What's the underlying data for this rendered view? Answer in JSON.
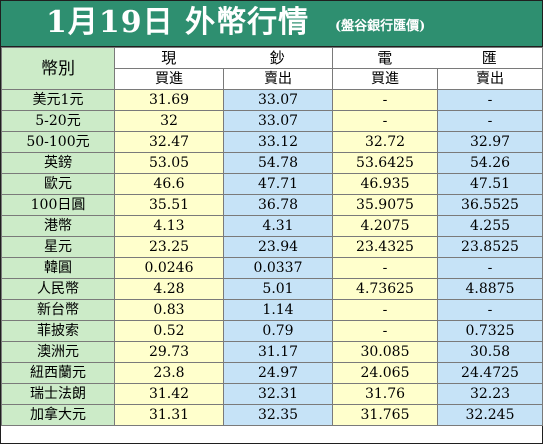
{
  "header": {
    "title": "1月19日 外幣行情",
    "subtitle": "(盤谷銀行匯價)"
  },
  "columns": {
    "currency": "幣別",
    "cash_group": [
      "現",
      "鈔"
    ],
    "spot_group": [
      "電",
      "匯"
    ],
    "buy": "買進",
    "sell": "賣出"
  },
  "colors": {
    "title_bg": "#2e8f70",
    "name_bg": "#ccebc8",
    "buy_bg": "#ffffcc",
    "sell_bg": "#c6e3f7"
  },
  "rows": [
    {
      "name": "美元1元",
      "cash_buy": "31.69",
      "cash_sell": "33.07",
      "spot_buy": "-",
      "spot_sell": "-"
    },
    {
      "name": "5-20元",
      "cash_buy": "32",
      "cash_sell": "33.07",
      "spot_buy": "-",
      "spot_sell": "-"
    },
    {
      "name": "50-100元",
      "cash_buy": "32.47",
      "cash_sell": "33.12",
      "spot_buy": "32.72",
      "spot_sell": "32.97"
    },
    {
      "name": "英鎊",
      "cash_buy": "53.05",
      "cash_sell": "54.78",
      "spot_buy": "53.6425",
      "spot_sell": "54.26"
    },
    {
      "name": "歐元",
      "cash_buy": "46.6",
      "cash_sell": "47.71",
      "spot_buy": "46.935",
      "spot_sell": "47.51"
    },
    {
      "name": "100日圓",
      "cash_buy": "35.51",
      "cash_sell": "36.78",
      "spot_buy": "35.9075",
      "spot_sell": "36.5525"
    },
    {
      "name": "港幣",
      "cash_buy": "4.13",
      "cash_sell": "4.31",
      "spot_buy": "4.2075",
      "spot_sell": "4.255"
    },
    {
      "name": "星元",
      "cash_buy": "23.25",
      "cash_sell": "23.94",
      "spot_buy": "23.4325",
      "spot_sell": "23.8525"
    },
    {
      "name": "韓圓",
      "cash_buy": "0.0246",
      "cash_sell": "0.0337",
      "spot_buy": "-",
      "spot_sell": "-"
    },
    {
      "name": "人民幣",
      "cash_buy": "4.28",
      "cash_sell": "5.01",
      "spot_buy": "4.73625",
      "spot_sell": "4.8875"
    },
    {
      "name": "新台幣",
      "cash_buy": "0.83",
      "cash_sell": "1.14",
      "spot_buy": "-",
      "spot_sell": "-"
    },
    {
      "name": "菲披索",
      "cash_buy": "0.52",
      "cash_sell": "0.79",
      "spot_buy": "-",
      "spot_sell": "0.7325"
    },
    {
      "name": "澳洲元",
      "cash_buy": "29.73",
      "cash_sell": "31.17",
      "spot_buy": "30.085",
      "spot_sell": "30.58"
    },
    {
      "name": "紐西蘭元",
      "cash_buy": "23.8",
      "cash_sell": "24.97",
      "spot_buy": "24.065",
      "spot_sell": "24.4725"
    },
    {
      "name": "瑞士法朗",
      "cash_buy": "31.42",
      "cash_sell": "32.31",
      "spot_buy": "31.76",
      "spot_sell": "32.23"
    },
    {
      "name": "加拿大元",
      "cash_buy": "31.31",
      "cash_sell": "32.35",
      "spot_buy": "31.765",
      "spot_sell": "32.245"
    }
  ]
}
